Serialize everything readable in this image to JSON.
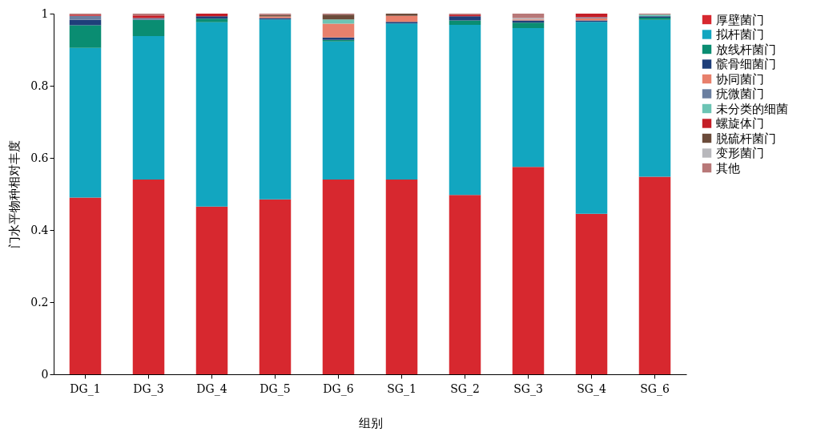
{
  "chart_data": {
    "type": "bar",
    "stacked": true,
    "xlabel": "组别",
    "ylabel": "门水平物种相对丰度",
    "categories": [
      "DG_1",
      "DG_3",
      "DG_4",
      "DG_5",
      "DG_6",
      "SG_1",
      "SG_2",
      "SG_3",
      "SG_4",
      "SG_6"
    ],
    "ylim": [
      0,
      1
    ],
    "yticks": [
      0,
      0.2,
      0.4,
      0.6,
      0.8,
      1
    ],
    "grid": false,
    "legend": "right",
    "series": [
      {
        "name": "厚壁菌门",
        "color": "#d7282f",
        "values": [
          0.49,
          0.54,
          0.465,
          0.485,
          0.54,
          0.54,
          0.497,
          0.575,
          0.445,
          0.548
        ]
      },
      {
        "name": "拟杆菌门",
        "color": "#12a6c0",
        "values": [
          0.415,
          0.398,
          0.511,
          0.499,
          0.383,
          0.433,
          0.472,
          0.385,
          0.532,
          0.435
        ]
      },
      {
        "name": "放线杆菌门",
        "color": "#0a8d72",
        "values": [
          0.063,
          0.045,
          0.01,
          0,
          0.004,
          0,
          0.012,
          0.015,
          0,
          0.006
        ]
      },
      {
        "name": "髌骨细菌门",
        "color": "#1f3f7a",
        "values": [
          0.015,
          0,
          0.007,
          0.004,
          0.007,
          0.004,
          0.012,
          0.006,
          0.004,
          0.004
        ]
      },
      {
        "name": "协同菌门",
        "color": "#e8806c",
        "values": [
          0,
          0,
          0,
          0.004,
          0.038,
          0.017,
          0,
          0.003,
          0.006,
          0
        ]
      },
      {
        "name": "疣微菌门",
        "color": "#6b7fa0",
        "values": [
          0.011,
          0.005,
          0,
          0,
          0,
          0,
          0,
          0,
          0.003,
          0
        ]
      },
      {
        "name": "未分类的细菌",
        "color": "#6cc4b4",
        "values": [
          0,
          0,
          0,
          0,
          0.012,
          0,
          0,
          0,
          0,
          0.004
        ]
      },
      {
        "name": "螺旋体门",
        "color": "#c41e27",
        "values": [
          0.003,
          0.007,
          0.007,
          0,
          0,
          0,
          0.004,
          0,
          0.01,
          0
        ]
      },
      {
        "name": "脱硫杆菌门",
        "color": "#6b4b3a",
        "values": [
          0,
          0,
          0,
          0.004,
          0.013,
          0.006,
          0,
          0,
          0,
          0
        ]
      },
      {
        "name": "变形菌门",
        "color": "#b8b8bc",
        "values": [
          0,
          0,
          0,
          0,
          0,
          0,
          0,
          0.004,
          0,
          0
        ]
      },
      {
        "name": "其他",
        "color": "#b87878",
        "values": [
          0.003,
          0.005,
          0,
          0.004,
          0.003,
          0,
          0.003,
          0.012,
          0,
          0.003
        ]
      }
    ]
  }
}
